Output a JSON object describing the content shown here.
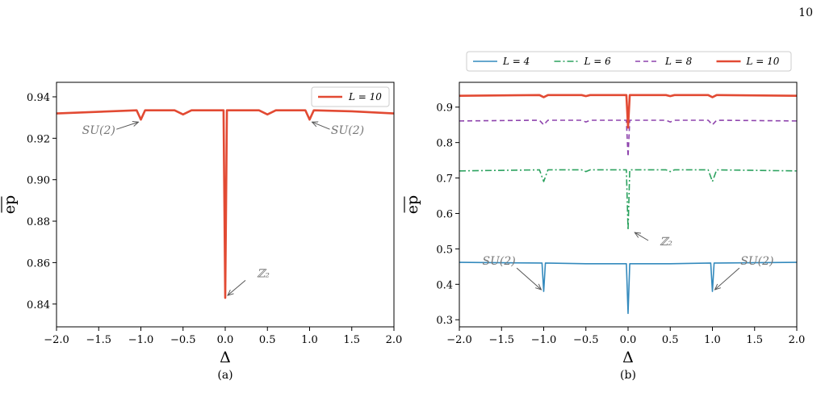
{
  "page": {
    "number": "10"
  },
  "chart_data": [
    {
      "id": "a",
      "type": "line",
      "caption": "(a)",
      "xlabel": "Δ",
      "ylabel": "ep",
      "xlim": [
        -2.0,
        2.0
      ],
      "ylim": [
        0.829,
        0.947
      ],
      "xticks": [
        -2.0,
        -1.5,
        -1.0,
        -0.5,
        0.0,
        0.5,
        1.0,
        1.5,
        2.0
      ],
      "xtick_labels": [
        "−2.0",
        "−1.5",
        "−1.0",
        "−0.5",
        "0.0",
        "0.5",
        "1.0",
        "1.5",
        "2.0"
      ],
      "yticks": [
        0.84,
        0.86,
        0.88,
        0.9,
        0.92,
        0.94
      ],
      "ytick_labels": [
        "0.84",
        "0.86",
        "0.88",
        "0.90",
        "0.92",
        "0.94"
      ],
      "legend_position": "top-right",
      "series": [
        {
          "name": "L = 10",
          "color": "#e24a33",
          "style": "solid",
          "x": [
            -2.0,
            -1.05,
            -1.0,
            -0.95,
            -0.6,
            -0.5,
            -0.4,
            -0.02,
            0.0,
            0.02,
            0.4,
            0.5,
            0.6,
            0.95,
            1.0,
            1.05,
            1.5,
            2.0
          ],
          "y": [
            0.932,
            0.9335,
            0.929,
            0.9335,
            0.9335,
            0.9315,
            0.9335,
            0.9335,
            0.843,
            0.9335,
            0.9335,
            0.9315,
            0.9335,
            0.9335,
            0.929,
            0.9335,
            0.933,
            0.932
          ]
        }
      ],
      "annotations": [
        {
          "text": "SU(2)",
          "x": -1.0,
          "y": 0.929,
          "text_x": -1.5,
          "text_y": 0.922
        },
        {
          "text": "SU(2)",
          "x": 1.0,
          "y": 0.929,
          "text_x": 1.45,
          "text_y": 0.922
        },
        {
          "text": "ℤ₂",
          "x": 0.0,
          "y": 0.843,
          "text_x": 0.45,
          "text_y": 0.853
        }
      ]
    },
    {
      "id": "b",
      "type": "line",
      "caption": "(b)",
      "xlabel": "Δ",
      "ylabel": "ep",
      "xlim": [
        -2.0,
        2.0
      ],
      "ylim": [
        0.28,
        0.97
      ],
      "xticks": [
        -2.0,
        -1.5,
        -1.0,
        -0.5,
        0.0,
        0.5,
        1.0,
        1.5,
        2.0
      ],
      "xtick_labels": [
        "−2.0",
        "−1.5",
        "−1.0",
        "−0.5",
        "0.0",
        "0.5",
        "1.0",
        "1.5",
        "2.0"
      ],
      "yticks": [
        0.3,
        0.4,
        0.5,
        0.6,
        0.7,
        0.8,
        0.9
      ],
      "ytick_labels": [
        "0.3",
        "0.4",
        "0.5",
        "0.6",
        "0.7",
        "0.8",
        "0.9"
      ],
      "legend_position": "top (above plot)",
      "series": [
        {
          "name": "L = 4",
          "color": "#348abd",
          "style": "solid",
          "x": [
            -2.0,
            -1.02,
            -1.0,
            -0.98,
            -0.5,
            -0.02,
            0.0,
            0.02,
            0.5,
            0.98,
            1.0,
            1.02,
            2.0
          ],
          "y": [
            0.462,
            0.46,
            0.38,
            0.46,
            0.458,
            0.458,
            0.318,
            0.458,
            0.458,
            0.46,
            0.38,
            0.46,
            0.462
          ]
        },
        {
          "name": "L = 6",
          "color": "#2ca25f",
          "style": "dashdot",
          "x": [
            -2.0,
            -1.05,
            -1.0,
            -0.95,
            -0.55,
            -0.5,
            -0.45,
            -0.02,
            0.0,
            0.02,
            0.45,
            0.5,
            0.55,
            0.95,
            1.0,
            1.05,
            2.0
          ],
          "y": [
            0.72,
            0.723,
            0.69,
            0.723,
            0.723,
            0.718,
            0.723,
            0.723,
            0.553,
            0.723,
            0.723,
            0.718,
            0.723,
            0.723,
            0.69,
            0.723,
            0.72
          ]
        },
        {
          "name": "L = 8",
          "color": "#8e44ad",
          "style": "dashed",
          "x": [
            -2.0,
            -1.05,
            -1.0,
            -0.95,
            -0.55,
            -0.5,
            -0.45,
            -0.02,
            0.0,
            0.02,
            0.45,
            0.5,
            0.55,
            0.95,
            1.0,
            1.05,
            2.0
          ],
          "y": [
            0.861,
            0.863,
            0.85,
            0.863,
            0.863,
            0.858,
            0.863,
            0.863,
            0.76,
            0.863,
            0.863,
            0.858,
            0.863,
            0.863,
            0.85,
            0.863,
            0.861
          ]
        },
        {
          "name": "L = 10",
          "color": "#e24a33",
          "style": "solid",
          "x": [
            -2.0,
            -1.05,
            -1.0,
            -0.95,
            -0.55,
            -0.5,
            -0.45,
            -0.02,
            0.0,
            0.02,
            0.45,
            0.5,
            0.55,
            0.95,
            1.0,
            1.05,
            2.0
          ],
          "y": [
            0.932,
            0.934,
            0.928,
            0.934,
            0.934,
            0.931,
            0.934,
            0.934,
            0.842,
            0.934,
            0.934,
            0.931,
            0.934,
            0.934,
            0.928,
            0.934,
            0.932
          ]
        }
      ],
      "annotations": [
        {
          "text": "ℤ₂",
          "x": 0.05,
          "y": 0.553,
          "text_x": 0.45,
          "text_y": 0.51
        },
        {
          "text": "SU(2)",
          "x": -1.0,
          "y": 0.378,
          "text_x": -1.53,
          "text_y": 0.455
        },
        {
          "text": "SU(2)",
          "x": 1.0,
          "y": 0.378,
          "text_x": 1.53,
          "text_y": 0.455
        }
      ]
    }
  ]
}
